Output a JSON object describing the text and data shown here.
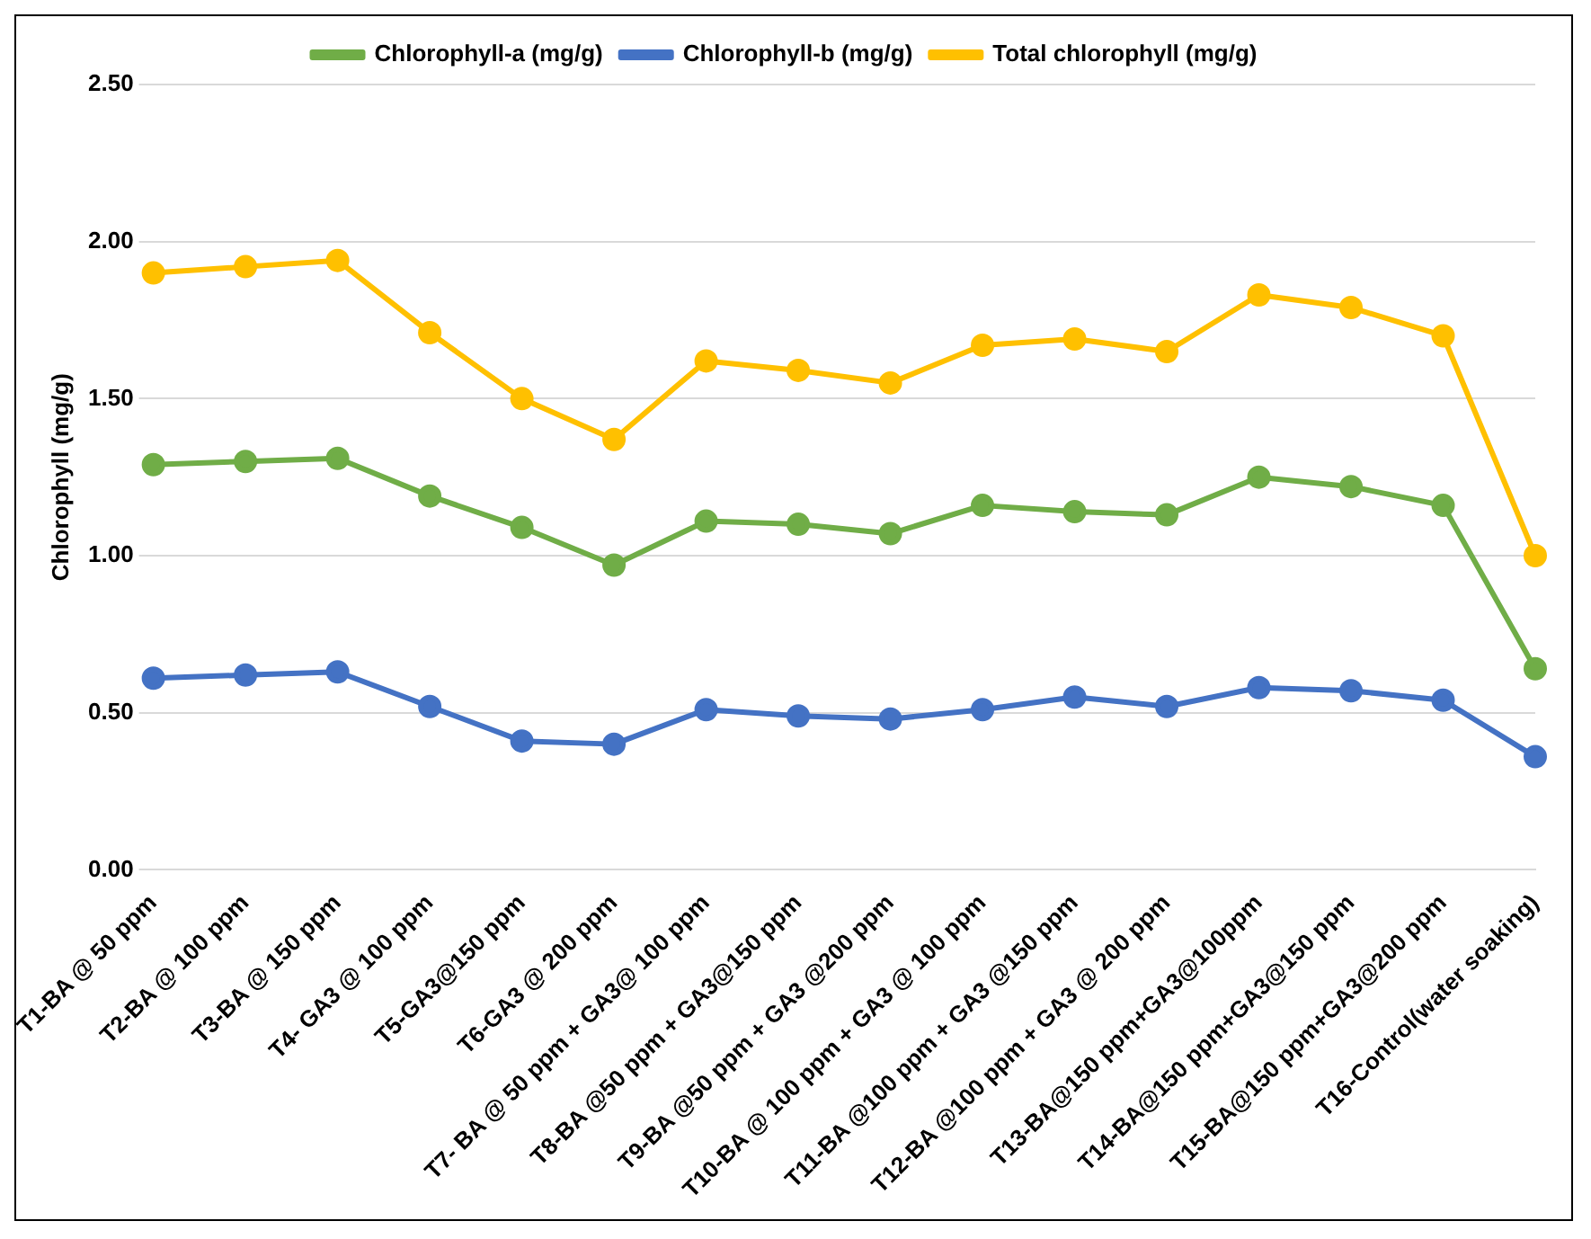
{
  "chart_data": {
    "type": "line",
    "ylabel": "Chlorophyll (mg/g)",
    "categories": [
      "T1-BA @ 50 ppm",
      "T2-BA @ 100 ppm",
      "T3-BA @ 150 ppm",
      "T4- GA3 @ 100 ppm",
      "T5-GA3@150 ppm",
      "T6-GA3 @ 200 ppm",
      "T7- BA @ 50 ppm + GA3@ 100 ppm",
      "T8-BA @50 ppm + GA3@150 ppm",
      "T9-BA @50 ppm + GA3 @200 ppm",
      "T10-BA @ 100 ppm + GA3 @ 100 ppm",
      "T11-BA @100 ppm + GA3 @150 ppm",
      "T12-BA @100 ppm + GA3 @ 200 ppm",
      "T13-BA@150 ppm+GA3@100ppm",
      "T14-BA@150 ppm+GA3@150 ppm",
      "T15-BA@150 ppm+GA3@200 ppm",
      "T16-Control(water soaking)"
    ],
    "series": [
      {
        "name": "Chlorophyll-a (mg/g)",
        "color": "#70ad47",
        "values": [
          1.29,
          1.3,
          1.31,
          1.19,
          1.09,
          0.97,
          1.11,
          1.1,
          1.07,
          1.16,
          1.14,
          1.13,
          1.25,
          1.22,
          1.16,
          0.64
        ]
      },
      {
        "name": "Chlorophyll-b (mg/g)",
        "color": "#4472c4",
        "values": [
          0.61,
          0.62,
          0.63,
          0.52,
          0.41,
          0.4,
          0.51,
          0.49,
          0.48,
          0.51,
          0.55,
          0.52,
          0.58,
          0.57,
          0.54,
          0.36
        ]
      },
      {
        "name": "Total chlorophyll (mg/g)",
        "color": "#ffc000",
        "values": [
          1.9,
          1.92,
          1.94,
          1.71,
          1.5,
          1.37,
          1.62,
          1.59,
          1.55,
          1.67,
          1.69,
          1.65,
          1.83,
          1.79,
          1.7,
          1.0
        ]
      }
    ],
    "ylim": [
      0,
      2.5
    ],
    "yticks": [
      {
        "value": 0,
        "label": "0.00"
      },
      {
        "value": 0.5,
        "label": "0.50"
      },
      {
        "value": 1,
        "label": "1.00"
      },
      {
        "value": 1.5,
        "label": "1.50"
      },
      {
        "value": 2,
        "label": "2.00"
      },
      {
        "value": 2.5,
        "label": "2.50"
      }
    ],
    "grid": "y",
    "legend": "top",
    "marker": "circle",
    "line_style": "solid"
  }
}
